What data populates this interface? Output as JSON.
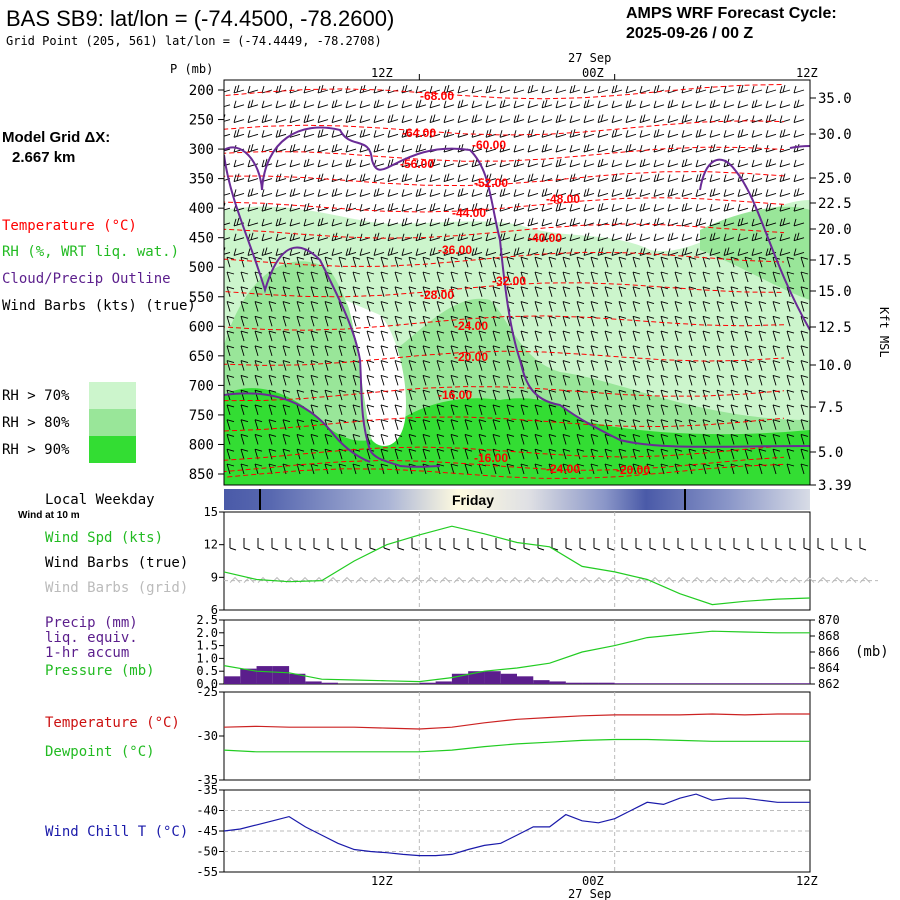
{
  "title": "BAS SB9:  lat/lon = (-74.4500, -78.2600)",
  "subtitle": "Grid Point (205, 561) lat/lon = (-74.4449, -78.2708)",
  "cycle_line1": "AMPS WRF Forecast Cycle:",
  "cycle_line2": "2025-09-26 / 00  Z",
  "model_grid_label": "Model Grid ΔX:",
  "model_grid_value": "2.667 km",
  "colors": {
    "temperature": "#ff0000",
    "rh_green": "#33dd33",
    "cloud_outline": "#6a2b96",
    "wind_speed": "#22cc22",
    "dewpoint": "#22cc22",
    "wind_chill": "#1a1aaa",
    "precip": "#5b1e8c",
    "grid_barbs": "#bbbbbb"
  },
  "legend": {
    "temperature": "Temperature (°C)",
    "rh": "RH (%, WRT liq. wat.)",
    "cloud": "Cloud/Precip Outline",
    "barbs": "Wind Barbs (kts) (true)",
    "rh70": "RH > 70%",
    "rh80": "RH > 80%",
    "rh90": "RH > 90%"
  },
  "time_axis": {
    "top_labels": [
      "12Z",
      "00Z",
      "12Z"
    ],
    "date_label": "27 Sep",
    "bottom_labels": [
      "12Z",
      "00Z",
      "12Z"
    ]
  },
  "p_axis_title": "P (mb)",
  "height_axis_title": "Kft MSL",
  "weekday": {
    "title": "Local Weekday",
    "day": "Friday",
    "wind_note": "Wind at 10 m"
  },
  "panel_labels": {
    "wind_speed": "Wind Spd (kts)",
    "wind_barbs_true": "Wind Barbs (true)",
    "wind_barbs_grid": "Wind Barbs (grid)",
    "precip1": "Precip (mm)",
    "precip2": "liq. equiv.",
    "precip3": "1-hr accum",
    "pressure": "Pressure (mb)",
    "pressure_unit": "(mb)",
    "temperature": "Temperature (°C)",
    "dewpoint": "Dewpoint (°C)",
    "wind_chill": "Wind Chill T (°C)"
  },
  "chart_data": [
    {
      "type": "heatmap",
      "name": "cross_section",
      "y_axis": "Pressure (mb)",
      "pressure_ticks": [
        200,
        250,
        300,
        350,
        400,
        450,
        500,
        550,
        600,
        650,
        700,
        750,
        800,
        850
      ],
      "height_ticks": [
        "35.0",
        "30.0",
        "25.0",
        "22.5",
        "20.0",
        "17.5",
        "15.0",
        "12.5",
        "10.0",
        "7.5",
        "5.0",
        "3.39"
      ],
      "temperature_labels": [
        "-68.00",
        "-64.00",
        "-60.00",
        "-56.00",
        "-52.00",
        "-48.00",
        "-44.00",
        "-40.00",
        "-36.00",
        "-32.00",
        "-28.00",
        "-24.00",
        "-20.00",
        "-16.00",
        "-16.00",
        "-24.00",
        "-20.00"
      ],
      "xlim_hours": [
        0,
        36
      ]
    },
    {
      "type": "line",
      "name": "wind_speed",
      "x_hours": [
        0,
        2,
        4,
        6,
        8,
        10,
        12,
        14,
        16,
        18,
        20,
        22,
        24,
        26,
        28,
        30,
        32,
        34,
        36
      ],
      "values": [
        9.5,
        8.8,
        8.6,
        8.7,
        10.5,
        12.0,
        12.9,
        13.7,
        13.0,
        12.2,
        11.8,
        10.0,
        9.5,
        8.8,
        7.5,
        6.5,
        6.8,
        7.0,
        7.1
      ],
      "ylim": [
        6,
        15
      ],
      "y_ticks": [
        6,
        9,
        12,
        15
      ]
    },
    {
      "type": "bar",
      "name": "precip",
      "x_hours": [
        0,
        1,
        2,
        3,
        4,
        5,
        6,
        7,
        8,
        9,
        10,
        11,
        12,
        13,
        14,
        15,
        16,
        17,
        18,
        19,
        20,
        21,
        22,
        23,
        24,
        25,
        26,
        27,
        28,
        29,
        30,
        31,
        32,
        33,
        34,
        35
      ],
      "values": [
        0.3,
        0.6,
        0.7,
        0.7,
        0.4,
        0.1,
        0.05,
        0,
        0,
        0,
        0,
        0,
        0.05,
        0.1,
        0.4,
        0.5,
        0.5,
        0.4,
        0.3,
        0.15,
        0.1,
        0.05,
        0.05,
        0.05,
        0.03,
        0.03,
        0.03,
        0.03,
        0.03,
        0.03,
        0.03,
        0.03,
        0.03,
        0.03,
        0.03,
        0.03
      ],
      "ylim": [
        0,
        2.5
      ],
      "y_ticks": [
        "0.0",
        "0.5",
        "1.0",
        "1.5",
        "2.0",
        "2.5"
      ]
    },
    {
      "type": "line",
      "name": "pressure",
      "x_hours": [
        0,
        2,
        4,
        6,
        8,
        10,
        12,
        14,
        16,
        18,
        20,
        22,
        24,
        26,
        28,
        30,
        32,
        34,
        36
      ],
      "values": [
        864.3,
        863.6,
        863.4,
        862.6,
        862.5,
        862.4,
        862.3,
        862.8,
        863.6,
        864.0,
        864.6,
        866.0,
        866.8,
        867.8,
        868.2,
        868.6,
        868.5,
        868.4,
        868.4
      ],
      "ylim": [
        862,
        870
      ],
      "y_ticks": [
        862,
        864,
        866,
        868,
        870
      ]
    },
    {
      "type": "line",
      "name": "temperature_dewpoint",
      "x_hours": [
        0,
        2,
        4,
        6,
        8,
        10,
        12,
        14,
        16,
        18,
        20,
        22,
        24,
        26,
        28,
        30,
        32,
        34,
        36
      ],
      "series": [
        {
          "name": "Temperature (°C)",
          "values": [
            -29.0,
            -28.9,
            -29.0,
            -29.0,
            -29.0,
            -29.1,
            -29.2,
            -29.0,
            -28.5,
            -28.1,
            -27.9,
            -27.7,
            -27.6,
            -27.6,
            -27.6,
            -27.5,
            -27.6,
            -27.5,
            -27.5
          ]
        },
        {
          "name": "Dewpoint (°C)",
          "values": [
            -31.6,
            -31.8,
            -31.8,
            -31.8,
            -31.8,
            -31.8,
            -31.8,
            -31.6,
            -31.2,
            -30.9,
            -30.7,
            -30.5,
            -30.4,
            -30.4,
            -30.5,
            -30.6,
            -30.6,
            -30.6,
            -30.6
          ]
        }
      ],
      "ylim": [
        -35,
        -25
      ],
      "y_ticks": [
        -35,
        -30,
        -25
      ]
    },
    {
      "type": "line",
      "name": "wind_chill",
      "x_hours": [
        0,
        1,
        2,
        3,
        4,
        5,
        6,
        7,
        8,
        9,
        10,
        11,
        12,
        13,
        14,
        15,
        16,
        17,
        18,
        19,
        20,
        21,
        22,
        23,
        24,
        25,
        26,
        27,
        28,
        29,
        30,
        31,
        32,
        33,
        34,
        35,
        36
      ],
      "values": [
        -45,
        -44.5,
        -43.5,
        -42.5,
        -41.5,
        -44,
        -46,
        -48,
        -49.5,
        -50,
        -50.3,
        -50.7,
        -51,
        -51,
        -50.7,
        -49.5,
        -48.5,
        -48,
        -46,
        -44,
        -44,
        -41,
        -42.5,
        -43,
        -42,
        -40,
        -38,
        -38.5,
        -37,
        -36,
        -37.5,
        -37,
        -37,
        -37.5,
        -38,
        -38,
        -38
      ],
      "ylim": [
        -55,
        -35
      ],
      "y_ticks": [
        -55,
        -50,
        -45,
        -40,
        -35
      ]
    }
  ]
}
